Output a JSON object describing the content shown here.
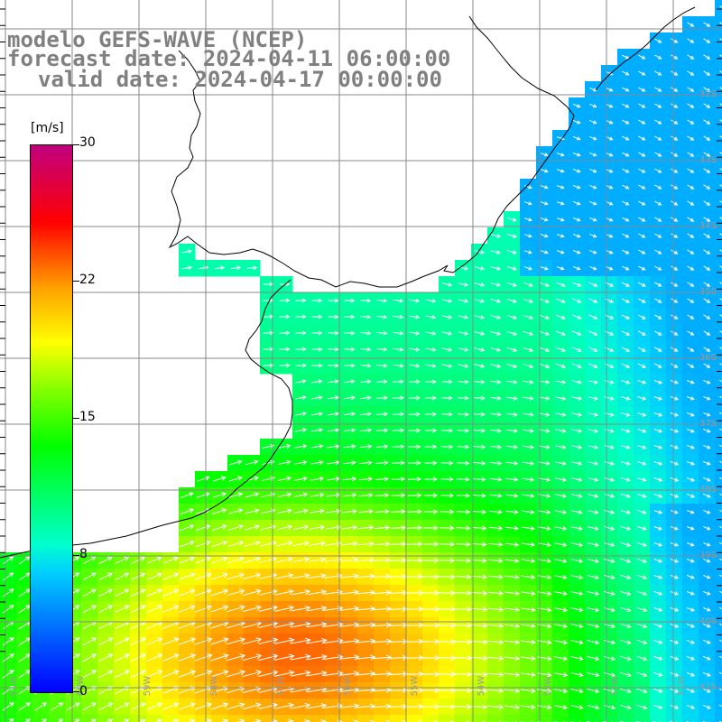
{
  "title": {
    "line1": "modelo GEFS-WAVE (NCEP)",
    "line2": "forecast date: 2024-04-11 06:00:00",
    "line3": "valid date: 2024-04-17 00:00:00"
  },
  "colorbar": {
    "unit": "[m/s]",
    "min": 0,
    "max": 30,
    "ticks": [
      "30",
      "22",
      "15",
      "8",
      "0"
    ]
  },
  "latitude_labels": [
    "32S",
    "33S",
    "34S",
    "35S",
    "36S",
    "37S",
    "38S",
    "39S",
    "40S",
    "41S"
  ],
  "longitude_labels": [
    "61W",
    "60W",
    "59W",
    "58W",
    "57W",
    "56W",
    "55W",
    "54W",
    "53W",
    "52W",
    "51W"
  ],
  "colors": {
    "grid": "#888888",
    "coast": "#000000",
    "arrows": "#ffffff",
    "title": "#808080",
    "axis_labels": "#9a9a9a"
  }
}
